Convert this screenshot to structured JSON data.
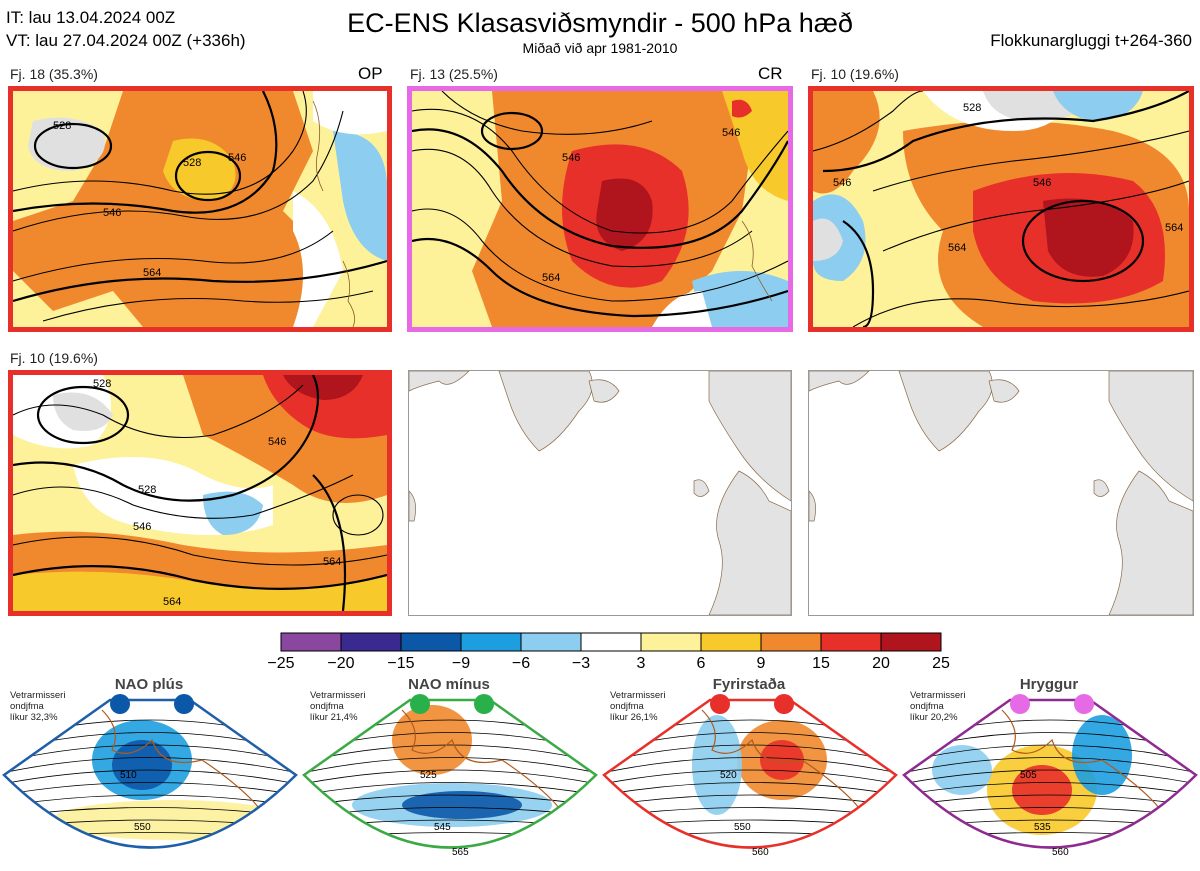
{
  "header": {
    "it_line": "IT: lau 13.04.2024 00Z",
    "vt_line": "VT: lau 27.04.2024 00Z  (+336h)",
    "title": "EC-ENS Klasasviðsmyndir - 500 hPa hæð",
    "subtitle": "Miðað við apr 1981-2010",
    "window": "Flokkunargluggi t+264-360"
  },
  "panels": [
    {
      "label": "Fj. 18 (35.3%)",
      "tag": "OP",
      "border": "#e8302a",
      "contours": [
        "528",
        "528",
        "546",
        "546",
        "564"
      ]
    },
    {
      "label": "Fj. 13 (25.5%)",
      "tag": "CR",
      "border": "#e66ae6",
      "contours": [
        "546",
        "546",
        "564"
      ]
    },
    {
      "label": "Fj. 10 (19.6%)",
      "tag": "",
      "border": "#e8302a",
      "contours": [
        "528",
        "546",
        "546",
        "564",
        "564"
      ]
    },
    {
      "label": "Fj. 10 (19.6%)",
      "tag": "",
      "border": "#e8302a",
      "contours": [
        "528",
        "528",
        "546",
        "546",
        "564",
        "564"
      ]
    },
    {
      "label": "",
      "tag": "",
      "border": "",
      "contours": []
    },
    {
      "label": "",
      "tag": "",
      "border": "",
      "contours": []
    }
  ],
  "colorbar": {
    "labels": [
      "−25",
      "−20",
      "−15",
      "−9",
      "−6",
      "−3",
      "3",
      "6",
      "9",
      "15",
      "20",
      "25"
    ],
    "colors": [
      "#8a47a0",
      "#3a2a90",
      "#0c58a8",
      "#1d9ee0",
      "#8ccdf0",
      "#ffffff",
      "#fdf19a",
      "#f8c92a",
      "#f0892e",
      "#e8302a",
      "#b0141c"
    ]
  },
  "regimes": [
    {
      "name": "NAO plús",
      "desc": [
        "Vetrarmisseri",
        "ondjfma",
        "líkur 32,3%"
      ],
      "border": "#1f5ea8",
      "dot": "#0c58a8",
      "contours": [
        "510",
        "550"
      ]
    },
    {
      "name": "NAO mínus",
      "desc": [
        "Vetrarmisseri",
        "ondjfma",
        "líkur 21,4%"
      ],
      "border": "#3aaa44",
      "dot": "#2ab04a",
      "contours": [
        "525",
        "545",
        "565"
      ]
    },
    {
      "name": "Fyrirstaða",
      "desc": [
        "Vetrarmisseri",
        "ondjfma",
        "líkur 26,1%"
      ],
      "border": "#e8302a",
      "dot": "#e8302a",
      "contours": [
        "520",
        "550",
        "560"
      ]
    },
    {
      "name": "Hryggur",
      "desc": [
        "Vetrarmisseri",
        "ondjfma",
        "líkur 20,2%"
      ],
      "border": "#8e2a90",
      "dot": "#e66ae6",
      "contours": [
        "505",
        "535",
        "560"
      ]
    }
  ]
}
